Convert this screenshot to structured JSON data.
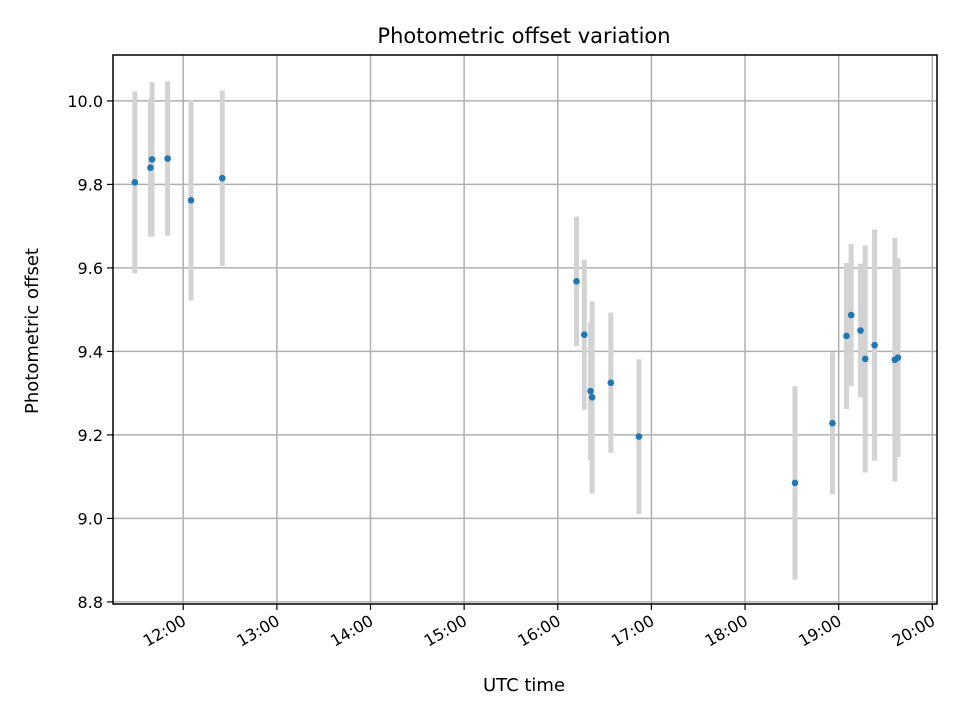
{
  "chart_data": {
    "type": "scatter",
    "title": "Photometric offset variation",
    "xlabel": "UTC time",
    "ylabel": "Photometric offset",
    "xlim": [
      "11:15",
      "20:03"
    ],
    "ylim": [
      8.795,
      10.11
    ],
    "grid": true,
    "colors": {
      "marker": "#1f77b4",
      "errorbar": "#d3d3d3"
    },
    "x_ticks": [
      "12:00",
      "13:00",
      "14:00",
      "15:00",
      "16:00",
      "17:00",
      "18:00",
      "19:00",
      "20:00"
    ],
    "y_ticks": [
      "8.8",
      "9.0",
      "9.2",
      "9.4",
      "9.6",
      "9.8",
      "10.0"
    ],
    "points": [
      {
        "x": "11:29",
        "y": 9.805,
        "err": 0.218
      },
      {
        "x": "11:39",
        "y": 9.84,
        "err": 0.165
      },
      {
        "x": "11:40",
        "y": 9.86,
        "err": 0.185
      },
      {
        "x": "11:50",
        "y": 9.862,
        "err": 0.185
      },
      {
        "x": "12:05",
        "y": 9.762,
        "err": 0.24
      },
      {
        "x": "12:25",
        "y": 9.815,
        "err": 0.21
      },
      {
        "x": "16:12",
        "y": 9.568,
        "err": 0.155
      },
      {
        "x": "16:17",
        "y": 9.44,
        "err": 0.18
      },
      {
        "x": "16:21",
        "y": 9.305,
        "err": 0.165
      },
      {
        "x": "16:22",
        "y": 9.29,
        "err": 0.23
      },
      {
        "x": "16:34",
        "y": 9.325,
        "err": 0.168
      },
      {
        "x": "16:52",
        "y": 9.196,
        "err": 0.185
      },
      {
        "x": "18:32",
        "y": 9.085,
        "err": 0.232
      },
      {
        "x": "18:56",
        "y": 9.228,
        "err": 0.17
      },
      {
        "x": "19:05",
        "y": 9.437,
        "err": 0.175
      },
      {
        "x": "19:08",
        "y": 9.487,
        "err": 0.17
      },
      {
        "x": "19:14",
        "y": 9.45,
        "err": 0.16
      },
      {
        "x": "19:17",
        "y": 9.382,
        "err": 0.272
      },
      {
        "x": "19:23",
        "y": 9.415,
        "err": 0.277
      },
      {
        "x": "19:36",
        "y": 9.38,
        "err": 0.292
      },
      {
        "x": "19:38",
        "y": 9.385,
        "err": 0.238
      }
    ]
  }
}
